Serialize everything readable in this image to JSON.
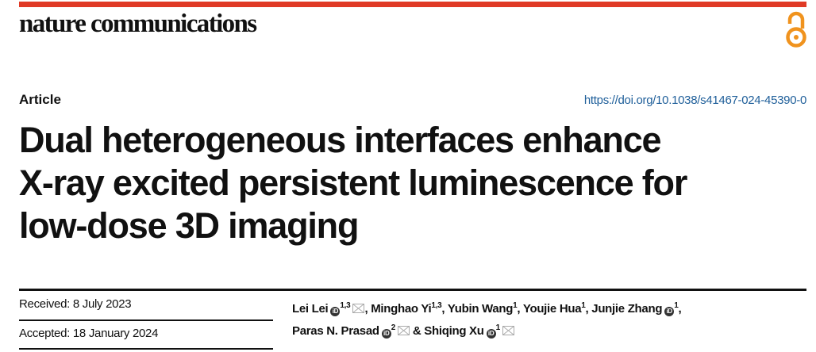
{
  "journal": {
    "name": "nature communications",
    "open_access_icon": "open-access-icon",
    "accent": "#e03a26",
    "oa_color": "#f0931e"
  },
  "article": {
    "type": "Article",
    "doi": "https://doi.org/10.1038/s41467-024-45390-0",
    "title_lines": [
      "Dual heterogeneous interfaces enhance",
      "X-ray excited persistent luminescence for",
      "low-dose 3D imaging"
    ],
    "received": "Received: 8 July 2023",
    "accepted": "Accepted: 18 January 2024",
    "authors": [
      {
        "name": "Lei Lei",
        "sup": "1,3",
        "orcid": true,
        "email": true,
        "sep": ", "
      },
      {
        "name": "Minghao Yi",
        "sup": "1,3",
        "sep": ", "
      },
      {
        "name": "Yubin Wang",
        "sup": "1",
        "sep": ", "
      },
      {
        "name": "Youjie Hua",
        "sup": "1",
        "sep": ", "
      },
      {
        "name": "Junjie Zhang",
        "sup": "1",
        "orcid": true,
        "sep": ","
      },
      {
        "name": "Paras N. Prasad",
        "sup": "2",
        "orcid": true,
        "email": true,
        "sep": " & "
      },
      {
        "name": "Shiqing Xu",
        "sup": "1",
        "orcid": true,
        "email": true,
        "sep": ""
      }
    ]
  }
}
